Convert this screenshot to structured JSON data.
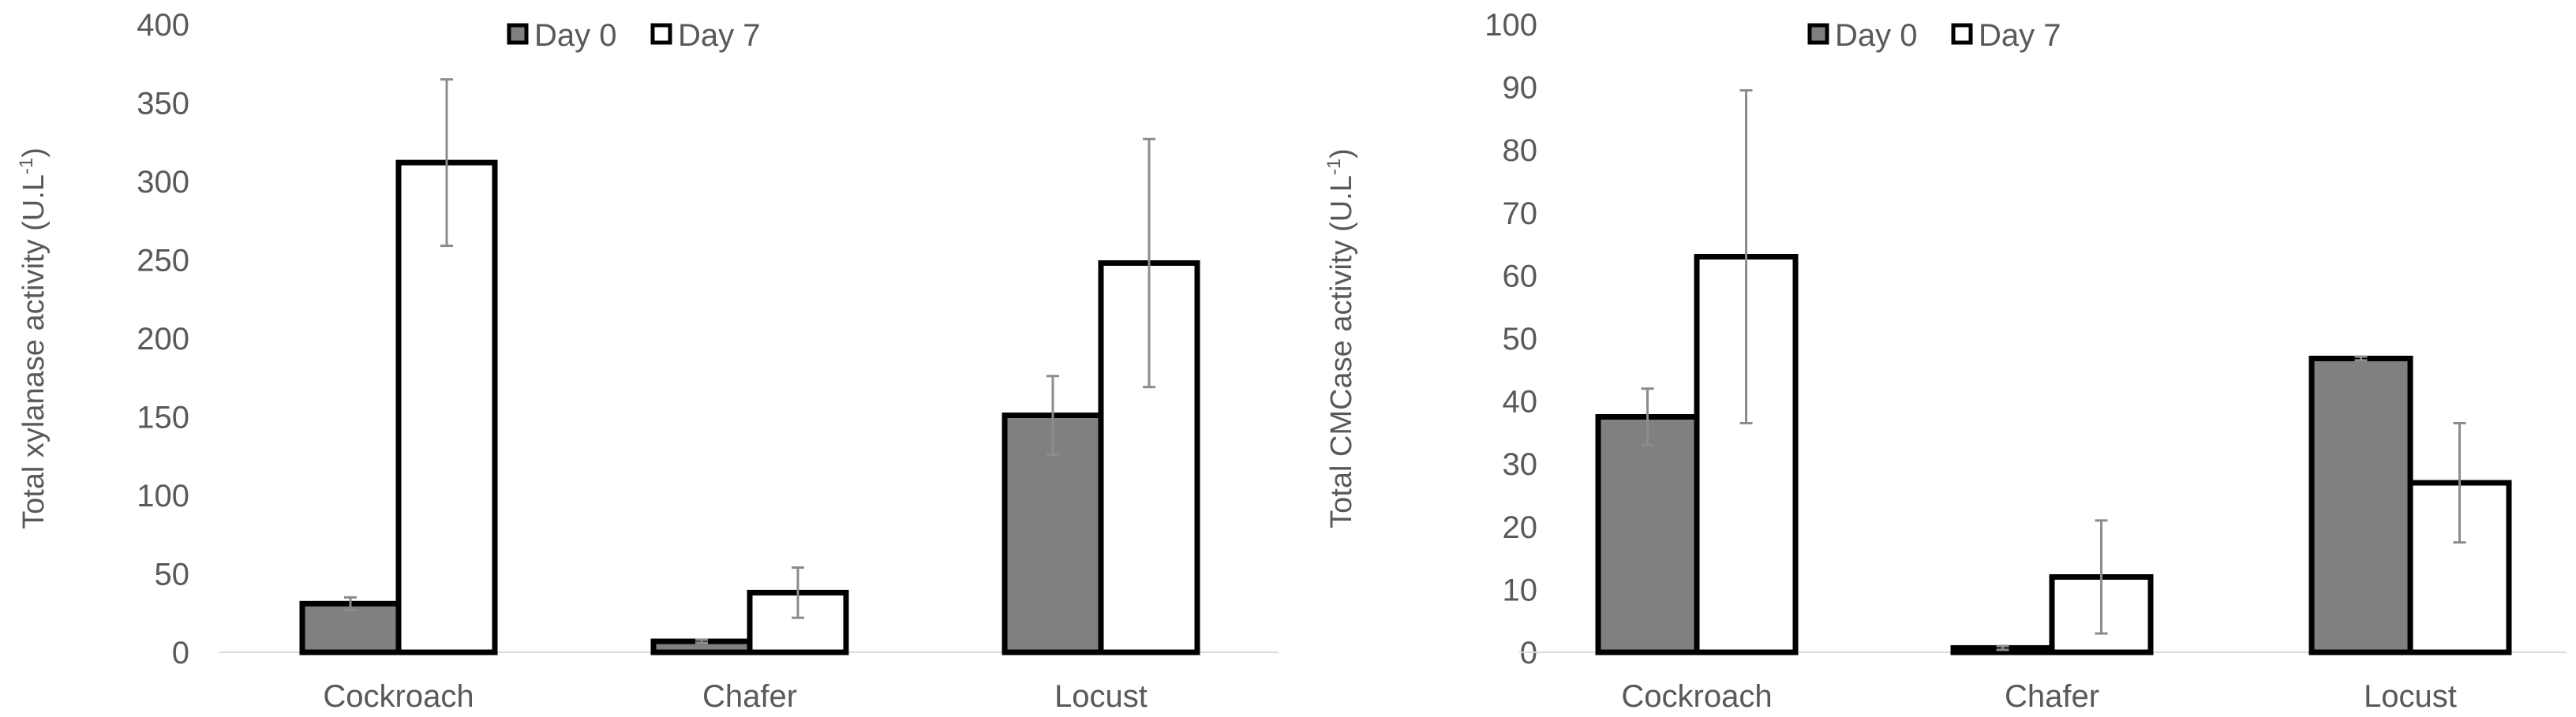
{
  "chart_data": [
    {
      "type": "bar",
      "categories": [
        "Cockroach",
        "Chafer",
        "Locust"
      ],
      "series": [
        {
          "name": "Day 0",
          "values": [
            31,
            7,
            151
          ],
          "errors": [
            4,
            1,
            25
          ],
          "color": "#808080"
        },
        {
          "name": "Day 7",
          "values": [
            312,
            38,
            248
          ],
          "errors": [
            53,
            16,
            79
          ],
          "color": "#ffffff"
        }
      ],
      "ylabel": "Total xylanase activity (U.L",
      "ylabel_sup": "-1",
      "ylabel_close": ")",
      "ylim": [
        0,
        400
      ],
      "yticks": [
        "0",
        "50",
        "100",
        "150",
        "200",
        "250",
        "300",
        "350",
        "400"
      ],
      "legend_position": "top-center",
      "grid": false
    },
    {
      "type": "bar",
      "categories": [
        "Cockroach",
        "Chafer",
        "Locust"
      ],
      "series": [
        {
          "name": "Day 0",
          "values": [
            37.5,
            0.7,
            46.8
          ],
          "errors": [
            4.5,
            0.3,
            0.3
          ],
          "color": "#808080"
        },
        {
          "name": "Day 7",
          "values": [
            63,
            12,
            27
          ],
          "errors": [
            26.5,
            9,
            9.5
          ],
          "color": "#ffffff"
        }
      ],
      "ylabel": "Total CMCase activity (U.L",
      "ylabel_sup": "-1",
      "ylabel_close": ")",
      "ylim": [
        0,
        100
      ],
      "yticks": [
        "0",
        "10",
        "20",
        "30",
        "40",
        "50",
        "60",
        "70",
        "80",
        "90",
        "100"
      ],
      "legend_position": "top-center",
      "grid": false
    }
  ]
}
